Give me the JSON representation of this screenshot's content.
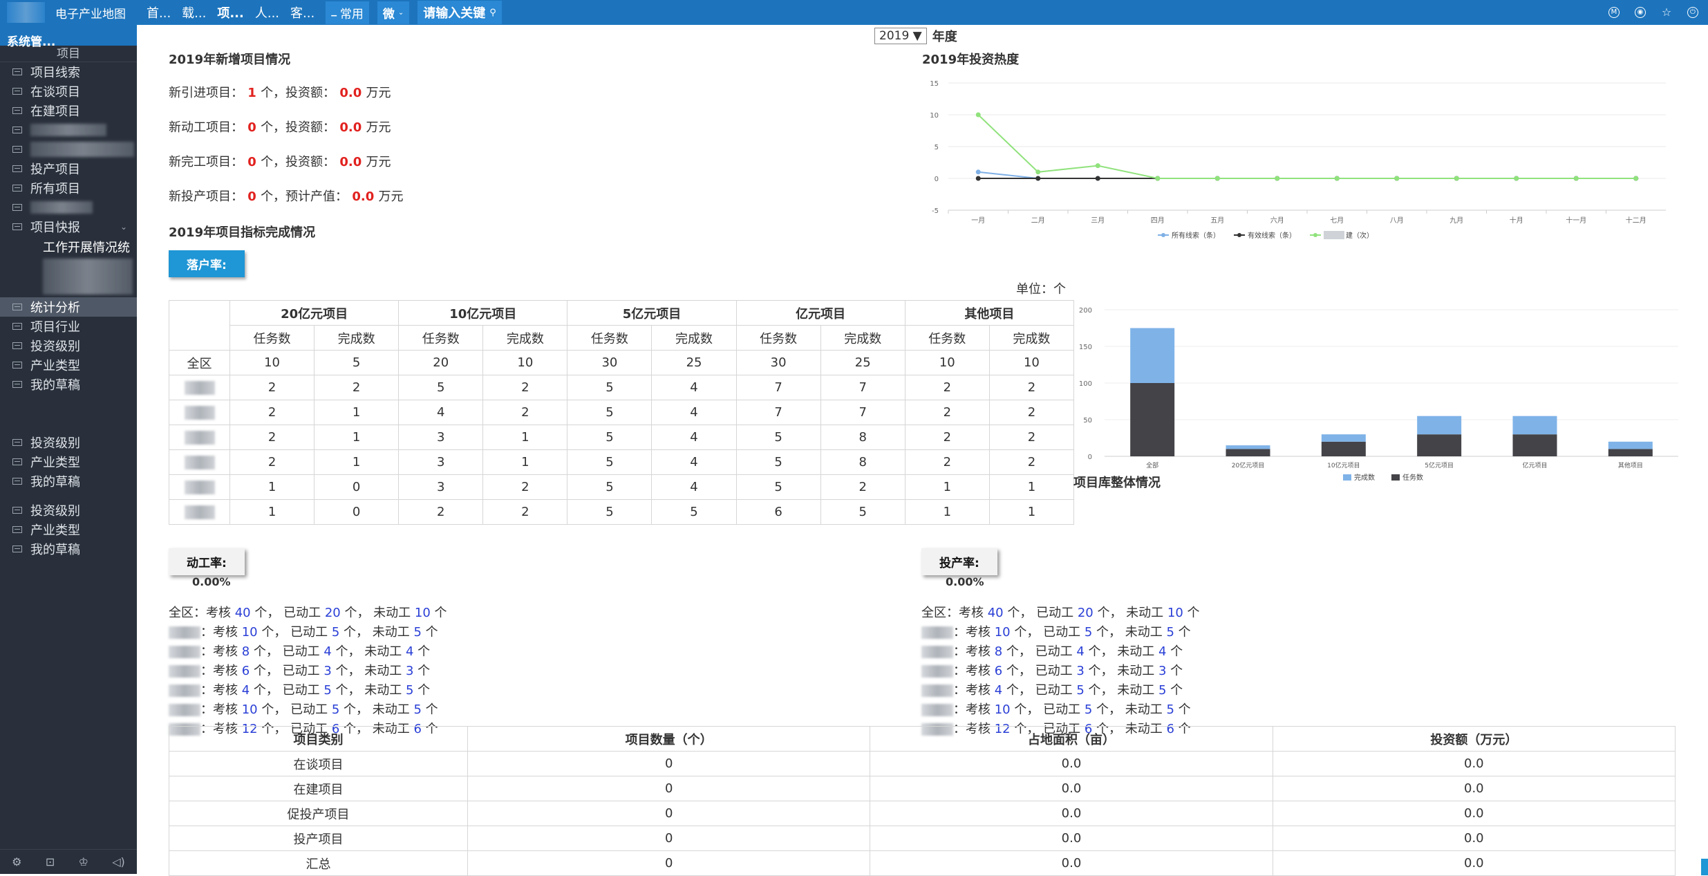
{
  "topbar": {
    "brand": "电子产业地图",
    "nav": [
      "首...",
      "载...",
      "项...",
      "人...",
      "客..."
    ],
    "nav_active_index": 2,
    "frequent": "常用",
    "wei": "微",
    "search_placeholder": "请输入关键"
  },
  "sidebar": {
    "title": "系统管...",
    "section_label": "项目",
    "group1": [
      "项目线索",
      "在谈项目",
      "在建项目",
      "",
      "",
      "投产项目",
      "所有项目",
      ""
    ],
    "kuaibao": "项目快报",
    "kuaibao_sub": "工作开展情况统",
    "group2": [
      "统计分析",
      "项目行业",
      "投资级别",
      "产业类型",
      "我的草稿"
    ],
    "group3": [
      "投资级别",
      "产业类型",
      "我的草稿"
    ],
    "group4": [
      "投资级别",
      "产业类型",
      "我的草稿"
    ]
  },
  "year": {
    "value": "2019",
    "suffix": "年度"
  },
  "new_projects": {
    "title": "2019年新增项目情况",
    "rows": [
      {
        "label": "新引进项目：",
        "count": "1",
        "mid": "个，投资额：",
        "amount": "0.0",
        "unit": "万元"
      },
      {
        "label": "新动工项目：",
        "count": "0",
        "mid": "个，投资额：",
        "amount": "0.0",
        "unit": "万元"
      },
      {
        "label": "新完工项目：",
        "count": "0",
        "mid": "个，投资额：",
        "amount": "0.0",
        "unit": "万元"
      },
      {
        "label": "新投产项目：",
        "count": "0",
        "mid": "个，预计产值：",
        "amount": "0.0",
        "unit": "万元"
      }
    ]
  },
  "completion": {
    "title": "2019年项目指标完成情况",
    "tag": "落户率:",
    "unit_label": "单位：个",
    "groups": [
      "20亿元项目",
      "10亿元项目",
      "5亿元项目",
      "亿元项目",
      "其他项目"
    ],
    "sub": [
      "任务数",
      "完成数"
    ],
    "rows": [
      {
        "name": "全区",
        "vals": [
          "10",
          "5",
          "20",
          "10",
          "30",
          "25",
          "30",
          "25",
          "10",
          "10"
        ]
      },
      {
        "name": "",
        "vals": [
          "2",
          "2",
          "5",
          "2",
          "5",
          "4",
          "7",
          "7",
          "2",
          "2"
        ]
      },
      {
        "name": "",
        "vals": [
          "2",
          "1",
          "4",
          "2",
          "5",
          "4",
          "7",
          "7",
          "2",
          "2"
        ]
      },
      {
        "name": "",
        "vals": [
          "2",
          "1",
          "3",
          "1",
          "5",
          "4",
          "5",
          "8",
          "2",
          "2"
        ]
      },
      {
        "name": "",
        "vals": [
          "2",
          "1",
          "3",
          "1",
          "5",
          "4",
          "5",
          "8",
          "2",
          "2"
        ]
      },
      {
        "name": "",
        "vals": [
          "1",
          "0",
          "3",
          "2",
          "5",
          "4",
          "5",
          "2",
          "1",
          "1"
        ]
      },
      {
        "name": "",
        "vals": [
          "1",
          "0",
          "2",
          "2",
          "5",
          "5",
          "6",
          "5",
          "1",
          "1"
        ]
      }
    ]
  },
  "heat_chart_title": "2019年投资热度",
  "library_title": "项目库整体情况",
  "rates": {
    "left_tag": "动工率:",
    "right_tag": "投产率:",
    "pct": "0.00%",
    "total_label": "全区：",
    "rows": [
      {
        "kh": "40",
        "dg": "20",
        "wdg": "10"
      },
      {
        "kh": "10",
        "dg": "5",
        "wdg": "5"
      },
      {
        "kh": "8",
        "dg": "4",
        "wdg": "4"
      },
      {
        "kh": "6",
        "dg": "3",
        "wdg": "3"
      },
      {
        "kh": "4",
        "dg": "5",
        "wdg": "5"
      },
      {
        "kh": "10",
        "dg": "5",
        "wdg": "5"
      },
      {
        "kh": "12",
        "dg": "6",
        "wdg": "6"
      }
    ],
    "kaohe": "考核",
    "yidong": "已动工",
    "weidong": "未动工",
    "ge": "个，",
    "ge_end": "个"
  },
  "summary_table": {
    "headers": [
      "项目类别",
      "项目数量（个）",
      "占地面积（亩）",
      "投资额（万元）"
    ],
    "rows": [
      [
        "在谈项目",
        "0",
        "0.0",
        "0.0"
      ],
      [
        "在建项目",
        "0",
        "0.0",
        "0.0"
      ],
      [
        "促投产项目",
        "0",
        "0.0",
        "0.0"
      ],
      [
        "投产项目",
        "0",
        "0.0",
        "0.0"
      ],
      [
        "汇总",
        "0",
        "0.0",
        "0.0"
      ]
    ]
  },
  "chart_data": [
    {
      "type": "line",
      "categories": [
        "一月",
        "二月",
        "三月",
        "四月",
        "五月",
        "六月",
        "七月",
        "八月",
        "九月",
        "十月",
        "十一月",
        "十二月"
      ],
      "ylim": [
        -5,
        15
      ],
      "yticks": [
        "-5",
        "0",
        "5",
        "10",
        "15"
      ],
      "grid": true,
      "legend": "bottom",
      "series": [
        {
          "name": "所有线索（条）",
          "color": "#7fb0e6",
          "values": [
            1,
            0,
            0,
            0,
            0,
            0,
            0,
            0,
            0,
            0,
            0,
            0
          ]
        },
        {
          "name": "有效线索（条）",
          "color": "#333333",
          "values": [
            0,
            0,
            0,
            0,
            0,
            0,
            0,
            0,
            0,
            0,
            0,
            0
          ]
        },
        {
          "name": "建（次）",
          "color": "#90e27c",
          "values": [
            10,
            1,
            2,
            0,
            0,
            0,
            0,
            0,
            0,
            0,
            0,
            0
          ]
        }
      ]
    },
    {
      "type": "bar",
      "stacked": true,
      "categories": [
        "全部",
        "20亿元项目",
        "10亿元项目",
        "5亿元项目",
        "亿元项目",
        "其他项目"
      ],
      "ylim": [
        0,
        200
      ],
      "yticks": [
        "0",
        "50",
        "100",
        "150",
        "200"
      ],
      "legend": "bottom",
      "series": [
        {
          "name": "完成数",
          "color": "#7fb3e8",
          "values": [
            75,
            5,
            10,
            25,
            25,
            10
          ]
        },
        {
          "name": "任务数",
          "color": "#434348",
          "values": [
            100,
            10,
            20,
            30,
            30,
            10
          ]
        }
      ]
    }
  ]
}
